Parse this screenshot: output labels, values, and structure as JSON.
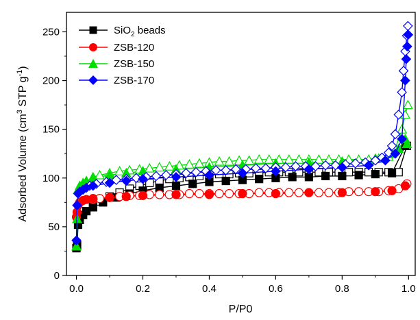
{
  "chart_data": {
    "type": "scatter",
    "xlabel": "P/P0",
    "ylabel_main": "Adsorbed Volume (cm",
    "ylabel_sup1": "3",
    "ylabel_mid": " STP g",
    "ylabel_sup2": "-1",
    "ylabel_end": ")",
    "xlim": [
      -0.03,
      1.02
    ],
    "ylim": [
      0,
      270
    ],
    "xticks": [
      "0.0",
      "0.2",
      "0.4",
      "0.6",
      "0.8",
      "1.0"
    ],
    "xtick_values": [
      0.0,
      0.2,
      0.4,
      0.6,
      0.8,
      1.0
    ],
    "yticks": [
      "0",
      "50",
      "100",
      "150",
      "200",
      "250"
    ],
    "ytick_values": [
      0,
      50,
      100,
      150,
      200,
      250
    ],
    "legend_position": "top-left",
    "series": [
      {
        "name_main": "SiO",
        "name_sub": "2",
        "name_end": " beads",
        "color": "#000000",
        "marker": "square",
        "adsorption": [
          [
            0.0,
            28
          ],
          [
            0.002,
            31
          ],
          [
            0.005,
            52
          ],
          [
            0.01,
            57
          ],
          [
            0.02,
            62
          ],
          [
            0.03,
            66
          ],
          [
            0.05,
            70
          ],
          [
            0.08,
            75
          ],
          [
            0.12,
            80
          ],
          [
            0.16,
            84
          ],
          [
            0.2,
            87
          ],
          [
            0.25,
            90
          ],
          [
            0.3,
            92
          ],
          [
            0.35,
            94
          ],
          [
            0.4,
            96
          ],
          [
            0.45,
            97
          ],
          [
            0.5,
            98
          ],
          [
            0.55,
            99
          ],
          [
            0.6,
            100
          ],
          [
            0.65,
            101
          ],
          [
            0.7,
            101
          ],
          [
            0.75,
            102
          ],
          [
            0.8,
            102
          ],
          [
            0.85,
            103
          ],
          [
            0.9,
            104
          ],
          [
            0.95,
            105
          ],
          [
            0.99,
            133
          ]
        ],
        "desorption": [
          [
            0.995,
            133
          ],
          [
            0.97,
            106
          ],
          [
            0.94,
            106
          ],
          [
            0.91,
            106
          ],
          [
            0.88,
            106
          ],
          [
            0.85,
            106
          ],
          [
            0.82,
            106
          ],
          [
            0.79,
            106
          ],
          [
            0.76,
            106
          ],
          [
            0.73,
            106
          ],
          [
            0.7,
            106
          ],
          [
            0.67,
            106
          ],
          [
            0.64,
            106
          ],
          [
            0.61,
            106
          ],
          [
            0.58,
            106
          ],
          [
            0.55,
            105
          ],
          [
            0.52,
            105
          ],
          [
            0.49,
            105
          ],
          [
            0.46,
            104
          ],
          [
            0.43,
            104
          ],
          [
            0.4,
            103
          ],
          [
            0.37,
            102
          ],
          [
            0.34,
            101
          ],
          [
            0.31,
            100
          ],
          [
            0.28,
            99
          ],
          [
            0.25,
            97
          ],
          [
            0.22,
            95
          ],
          [
            0.19,
            92
          ],
          [
            0.16,
            89
          ],
          [
            0.13,
            85
          ],
          [
            0.1,
            81
          ],
          [
            0.07,
            76
          ],
          [
            0.05,
            72
          ]
        ]
      },
      {
        "name": "ZSB-120",
        "color": "#ff0000",
        "marker": "circle",
        "adsorption": [
          [
            0.0,
            60
          ],
          [
            0.002,
            65
          ],
          [
            0.005,
            72
          ],
          [
            0.01,
            75
          ],
          [
            0.02,
            77
          ],
          [
            0.03,
            78
          ],
          [
            0.05,
            79
          ],
          [
            0.1,
            80
          ],
          [
            0.15,
            81
          ],
          [
            0.2,
            82
          ],
          [
            0.3,
            83
          ],
          [
            0.4,
            83
          ],
          [
            0.5,
            84
          ],
          [
            0.6,
            84
          ],
          [
            0.7,
            85
          ],
          [
            0.8,
            85
          ],
          [
            0.9,
            86
          ],
          [
            0.95,
            87
          ],
          [
            0.99,
            92
          ]
        ],
        "desorption": [
          [
            0.995,
            94
          ],
          [
            0.97,
            89
          ],
          [
            0.94,
            87
          ],
          [
            0.91,
            86
          ],
          [
            0.88,
            86
          ],
          [
            0.85,
            86
          ],
          [
            0.82,
            86
          ],
          [
            0.79,
            85
          ],
          [
            0.76,
            85
          ],
          [
            0.73,
            85
          ],
          [
            0.7,
            85
          ],
          [
            0.67,
            85
          ],
          [
            0.64,
            85
          ],
          [
            0.61,
            85
          ],
          [
            0.58,
            85
          ],
          [
            0.55,
            85
          ],
          [
            0.52,
            84
          ],
          [
            0.49,
            84
          ],
          [
            0.46,
            84
          ],
          [
            0.43,
            84
          ],
          [
            0.4,
            84
          ],
          [
            0.37,
            84
          ],
          [
            0.34,
            84
          ],
          [
            0.31,
            83
          ],
          [
            0.28,
            83
          ],
          [
            0.25,
            83
          ],
          [
            0.22,
            83
          ],
          [
            0.19,
            82
          ],
          [
            0.16,
            82
          ],
          [
            0.13,
            81
          ],
          [
            0.1,
            80
          ],
          [
            0.07,
            79
          ],
          [
            0.05,
            78
          ]
        ]
      },
      {
        "name": "ZSB-150",
        "color": "#00dd00",
        "marker": "triangle",
        "adsorption": [
          [
            0.0,
            30
          ],
          [
            0.002,
            58
          ],
          [
            0.005,
            88
          ],
          [
            0.01,
            92
          ],
          [
            0.02,
            95
          ],
          [
            0.03,
            97
          ],
          [
            0.05,
            100
          ],
          [
            0.1,
            103
          ],
          [
            0.15,
            105
          ],
          [
            0.2,
            107
          ],
          [
            0.3,
            109
          ],
          [
            0.4,
            111
          ],
          [
            0.5,
            113
          ],
          [
            0.6,
            115
          ],
          [
            0.7,
            116
          ],
          [
            0.8,
            117
          ],
          [
            0.9,
            120
          ],
          [
            0.95,
            125
          ],
          [
            0.97,
            130
          ],
          [
            0.99,
            140
          ],
          [
            0.995,
            135
          ]
        ],
        "desorption": [
          [
            0.998,
            175
          ],
          [
            0.99,
            165
          ],
          [
            0.98,
            150
          ],
          [
            0.96,
            130
          ],
          [
            0.94,
            122
          ],
          [
            0.91,
            120
          ],
          [
            0.88,
            119
          ],
          [
            0.85,
            119
          ],
          [
            0.82,
            119
          ],
          [
            0.79,
            119
          ],
          [
            0.76,
            119
          ],
          [
            0.73,
            119
          ],
          [
            0.7,
            119
          ],
          [
            0.67,
            119
          ],
          [
            0.64,
            119
          ],
          [
            0.61,
            119
          ],
          [
            0.58,
            119
          ],
          [
            0.55,
            119
          ],
          [
            0.52,
            118
          ],
          [
            0.49,
            118
          ],
          [
            0.46,
            117
          ],
          [
            0.43,
            117
          ],
          [
            0.4,
            116
          ],
          [
            0.37,
            115
          ],
          [
            0.34,
            114
          ],
          [
            0.31,
            113
          ],
          [
            0.28,
            112
          ],
          [
            0.25,
            111
          ],
          [
            0.22,
            110
          ],
          [
            0.19,
            109
          ],
          [
            0.16,
            108
          ],
          [
            0.13,
            107
          ],
          [
            0.1,
            105
          ],
          [
            0.07,
            103
          ],
          [
            0.05,
            101
          ]
        ]
      },
      {
        "name": "ZSB-170",
        "color": "#0000ff",
        "marker": "diamond",
        "adsorption": [
          [
            0.0,
            36
          ],
          [
            0.002,
            72
          ],
          [
            0.005,
            84
          ],
          [
            0.01,
            86
          ],
          [
            0.02,
            88
          ],
          [
            0.03,
            90
          ],
          [
            0.05,
            92
          ],
          [
            0.1,
            95
          ],
          [
            0.15,
            97
          ],
          [
            0.2,
            99
          ],
          [
            0.3,
            101
          ],
          [
            0.4,
            103
          ],
          [
            0.5,
            105
          ],
          [
            0.6,
            107
          ],
          [
            0.7,
            109
          ],
          [
            0.8,
            111
          ],
          [
            0.88,
            113
          ],
          [
            0.93,
            118
          ],
          [
            0.96,
            125
          ],
          [
            0.98,
            140
          ],
          [
            0.99,
            200
          ],
          [
            0.993,
            222
          ],
          [
            0.996,
            235
          ],
          [
            0.999,
            247
          ]
        ],
        "desorption": [
          [
            0.998,
            256
          ],
          [
            0.995,
            246
          ],
          [
            0.99,
            230
          ],
          [
            0.985,
            210
          ],
          [
            0.98,
            188
          ],
          [
            0.97,
            165
          ],
          [
            0.96,
            145
          ],
          [
            0.95,
            133
          ],
          [
            0.94,
            126
          ],
          [
            0.92,
            121
          ],
          [
            0.9,
            118
          ],
          [
            0.87,
            116
          ],
          [
            0.84,
            115
          ],
          [
            0.81,
            114
          ],
          [
            0.78,
            113
          ],
          [
            0.75,
            113
          ],
          [
            0.72,
            112
          ],
          [
            0.69,
            112
          ],
          [
            0.66,
            112
          ],
          [
            0.63,
            111
          ],
          [
            0.6,
            111
          ],
          [
            0.57,
            110
          ],
          [
            0.54,
            110
          ],
          [
            0.51,
            109
          ],
          [
            0.48,
            109
          ],
          [
            0.45,
            108
          ],
          [
            0.42,
            108
          ],
          [
            0.39,
            107
          ],
          [
            0.36,
            106
          ],
          [
            0.33,
            105
          ],
          [
            0.3,
            104
          ],
          [
            0.27,
            103
          ],
          [
            0.24,
            102
          ],
          [
            0.21,
            101
          ],
          [
            0.18,
            100
          ],
          [
            0.15,
            99
          ],
          [
            0.12,
            98
          ],
          [
            0.09,
            96
          ],
          [
            0.06,
            94
          ],
          [
            0.04,
            92
          ]
        ]
      }
    ]
  }
}
